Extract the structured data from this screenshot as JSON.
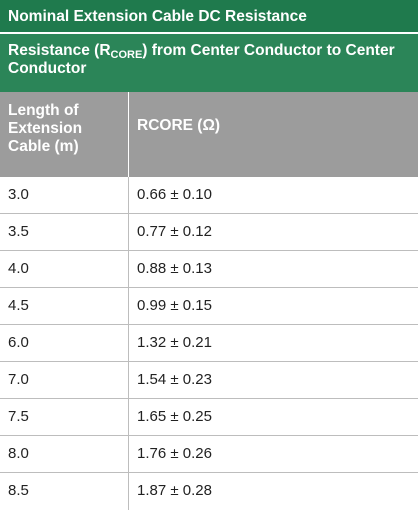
{
  "table": {
    "title": "Nominal Extension Cable DC Resistance",
    "subtitle": {
      "prefix": "Resistance (R",
      "subscript": "CORE",
      "suffix": ") from Center Conductor to Center Conductor"
    },
    "headers": {
      "length": "Length of Extension Cable (m)",
      "rcore": "RCORE (Ω)"
    },
    "rows": [
      {
        "length": "3.0",
        "rcore": "0.66 ± 0.10"
      },
      {
        "length": "3.5",
        "rcore": "0.77 ± 0.12"
      },
      {
        "length": "4.0",
        "rcore": "0.88 ± 0.13"
      },
      {
        "length": "4.5",
        "rcore": "0.99 ± 0.15"
      },
      {
        "length": "6.0",
        "rcore": "1.32 ± 0.21"
      },
      {
        "length": "7.0",
        "rcore": "1.54 ± 0.23"
      },
      {
        "length": "7.5",
        "rcore": "1.65 ± 0.25"
      },
      {
        "length": "8.0",
        "rcore": "1.76 ± 0.26"
      },
      {
        "length": "8.5",
        "rcore": "1.87 ± 0.28"
      }
    ]
  },
  "colors": {
    "title_bg": "#1f7a4d",
    "subtitle_bg": "#2b8558",
    "header_bg": "#9c9c9c",
    "grid_line": "#bdbdbd"
  }
}
